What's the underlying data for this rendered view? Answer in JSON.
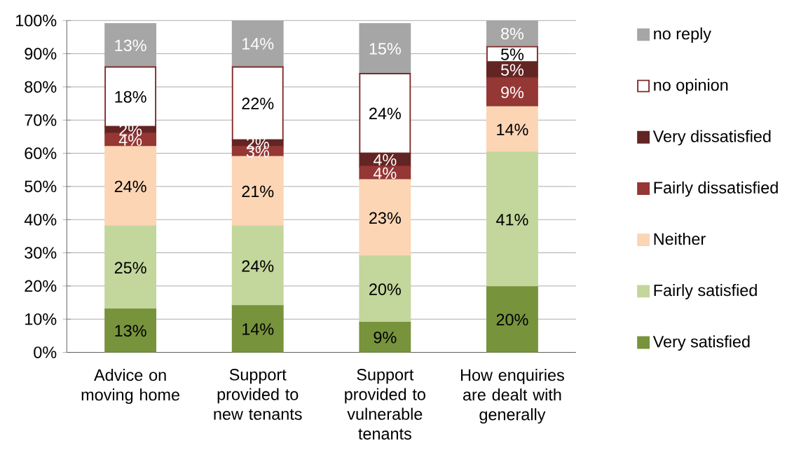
{
  "chart_data": {
    "type": "bar",
    "stacked": true,
    "categories": [
      "Advice on moving home",
      "Support provided to new tenants",
      "Support provided to vulnerable tenants",
      "How enquiries are dealt with generally"
    ],
    "series": [
      {
        "name": "Very satisfied",
        "color": "#77933c",
        "values": [
          13,
          14,
          9,
          19.7
        ],
        "value_labels": [
          "13%",
          "14%",
          "9%",
          "20%"
        ]
      },
      {
        "name": "Fairly satisfied",
        "color": "#c3d69b",
        "values": [
          25,
          24,
          20,
          40.6
        ],
        "value_labels": [
          "25%",
          "24%",
          "20%",
          "41%"
        ]
      },
      {
        "name": "Neither",
        "color": "#fcd5b5",
        "values": [
          24,
          21,
          23,
          13.7
        ],
        "value_labels": [
          "24%",
          "21%",
          "23%",
          "14%"
        ]
      },
      {
        "name": "Fairly dissatisfied",
        "color": "#953735",
        "values": [
          4,
          3,
          4,
          8.7
        ],
        "value_labels": [
          "4%",
          "3%",
          "4%",
          "9%"
        ]
      },
      {
        "name": "Very dissatisfied",
        "color": "#632523",
        "values": [
          2,
          2,
          4,
          4.8
        ],
        "value_labels": [
          "2%",
          "2%",
          "4%",
          "5%"
        ]
      },
      {
        "name": "no opinion",
        "color": "#ffffff",
        "values": [
          18,
          22,
          24,
          4.6
        ],
        "value_labels": [
          "18%",
          "22%",
          "24%",
          "5%"
        ]
      },
      {
        "name": "no reply",
        "color": "#a6a6a6",
        "values": [
          13,
          14,
          15,
          7.9
        ],
        "value_labels": [
          "13%",
          "14%",
          "15%",
          "8%"
        ]
      }
    ],
    "ylim": [
      0,
      100
    ],
    "yticks": [
      {
        "value": 0,
        "label": "0%"
      },
      {
        "value": 10,
        "label": "10%"
      },
      {
        "value": 20,
        "label": "20%"
      },
      {
        "value": 30,
        "label": "30%"
      },
      {
        "value": 40,
        "label": "40%"
      },
      {
        "value": 50,
        "label": "50%"
      },
      {
        "value": 60,
        "label": "60%"
      },
      {
        "value": 70,
        "label": "70%"
      },
      {
        "value": 80,
        "label": "80%"
      },
      {
        "value": 90,
        "label": "90%"
      },
      {
        "value": 100,
        "label": "100%"
      }
    ],
    "grid": "y",
    "legend": "right"
  }
}
